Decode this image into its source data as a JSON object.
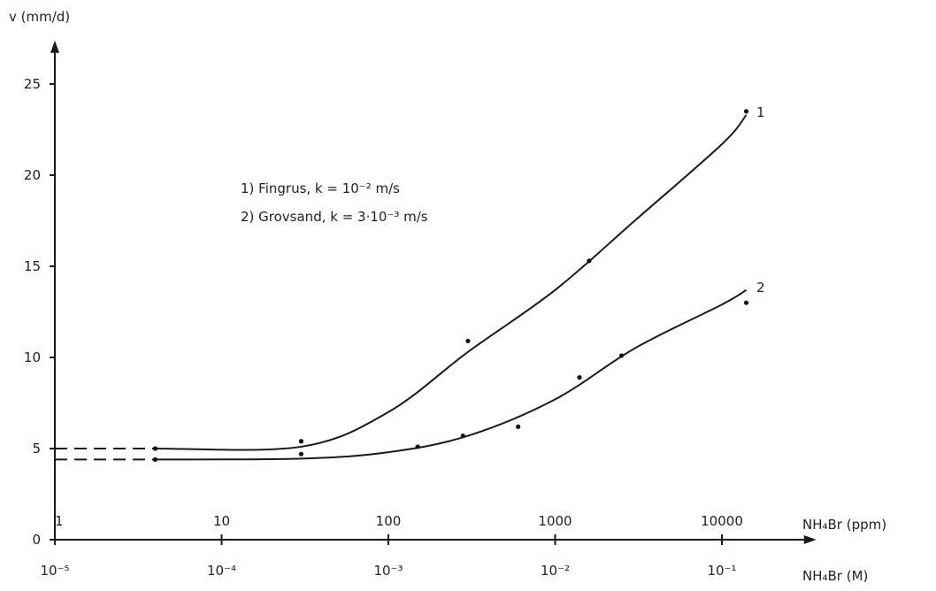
{
  "chart_data": {
    "type": "line",
    "y_axis_label": "v (mm/d)",
    "x_axis_label_top": "NH₄Br (ppm)",
    "x_axis_label_bottom": "NH₄Br (M)",
    "x_scale": "log",
    "xlim_ppm": [
      1,
      20000
    ],
    "ylim": [
      0,
      27
    ],
    "yticks": [
      0,
      5,
      10,
      15,
      20,
      25
    ],
    "xticks_ppm": [
      {
        "value": 1,
        "label": "1"
      },
      {
        "value": 10,
        "label": "10"
      },
      {
        "value": 100,
        "label": "100"
      },
      {
        "value": 1000,
        "label": "1000"
      },
      {
        "value": 10000,
        "label": "10000"
      }
    ],
    "xticks_molar": [
      {
        "value": 1,
        "label": "10⁻⁵"
      },
      {
        "value": 10,
        "label": "10⁻⁴"
      },
      {
        "value": 100,
        "label": "10⁻³"
      },
      {
        "value": 1000,
        "label": "10⁻²"
      },
      {
        "value": 10000,
        "label": "10⁻¹"
      }
    ],
    "legend": [
      "1)  Fingrus, k = 10⁻² m/s",
      "2)  Grovsand, k = 3·10⁻³ m/s"
    ],
    "series": [
      {
        "name": "1",
        "points": [
          [
            4,
            5.0
          ],
          [
            30,
            5.4
          ],
          [
            300,
            10.9
          ],
          [
            1600,
            15.3
          ],
          [
            14000,
            23.5
          ]
        ],
        "curve": [
          [
            4,
            5.0
          ],
          [
            30,
            5.1
          ],
          [
            100,
            7.0
          ],
          [
            300,
            10.3
          ],
          [
            1000,
            13.7
          ],
          [
            3000,
            17.5
          ],
          [
            10000,
            21.7
          ],
          [
            14000,
            23.3
          ]
        ],
        "extrapolated_y": 5.0
      },
      {
        "name": "2",
        "points": [
          [
            4,
            4.4
          ],
          [
            30,
            4.7
          ],
          [
            150,
            5.1
          ],
          [
            280,
            5.7
          ],
          [
            600,
            6.2
          ],
          [
            1400,
            8.9
          ],
          [
            2500,
            10.1
          ],
          [
            14000,
            13.0
          ]
        ],
        "curve": [
          [
            4,
            4.4
          ],
          [
            30,
            4.45
          ],
          [
            100,
            4.8
          ],
          [
            300,
            5.7
          ],
          [
            1000,
            7.7
          ],
          [
            3000,
            10.5
          ],
          [
            10000,
            12.9
          ],
          [
            14000,
            13.7
          ]
        ],
        "extrapolated_y": 4.4
      }
    ]
  }
}
